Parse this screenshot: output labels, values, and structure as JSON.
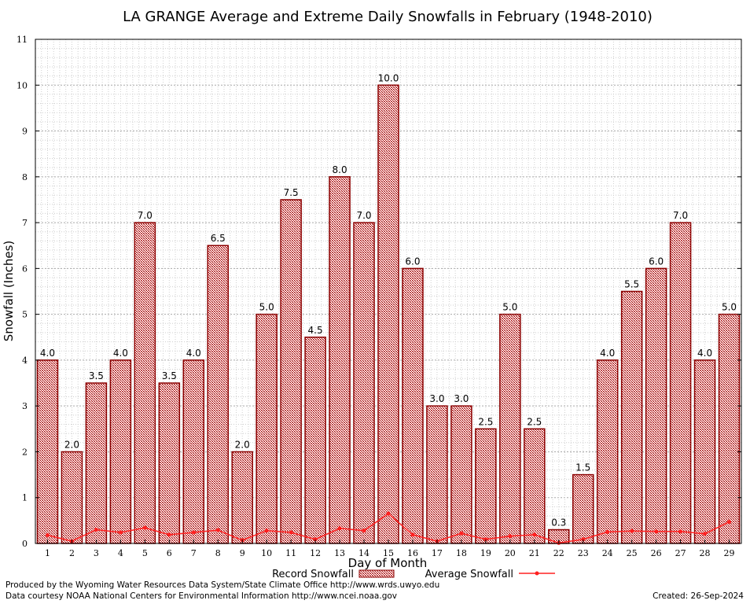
{
  "chart_data": {
    "type": "bar",
    "title": "LA GRANGE Average and Extreme Daily Snowfalls in February (1948-2010)",
    "xlabel": "Day of Month",
    "ylabel": "Snowfall (Inches)",
    "ylim": [
      0,
      11
    ],
    "yticks": [
      "0",
      "1",
      "2",
      "3",
      "4",
      "5",
      "6",
      "7",
      "8",
      "9",
      "10",
      "11"
    ],
    "categories": [
      "1",
      "2",
      "3",
      "4",
      "5",
      "6",
      "7",
      "8",
      "9",
      "10",
      "11",
      "12",
      "13",
      "14",
      "15",
      "16",
      "17",
      "18",
      "19",
      "20",
      "21",
      "22",
      "23",
      "24",
      "25",
      "26",
      "27",
      "28",
      "29"
    ],
    "grid": true,
    "series": [
      {
        "name": "Record Snowfall",
        "kind": "bar",
        "color": "#cc0000",
        "values": [
          4.0,
          2.0,
          3.5,
          4.0,
          7.0,
          3.5,
          4.0,
          6.5,
          2.0,
          5.0,
          7.5,
          4.5,
          8.0,
          7.0,
          10.0,
          6.0,
          3.0,
          3.0,
          2.5,
          5.0,
          2.5,
          0.3,
          1.5,
          4.0,
          5.5,
          6.0,
          7.0,
          4.0,
          5.0
        ],
        "labels": [
          "4.0",
          "2.0",
          "3.5",
          "4.0",
          "7.0",
          "3.5",
          "4.0",
          "6.5",
          "2.0",
          "5.0",
          "7.5",
          "4.5",
          "8.0",
          "7.0",
          "10.0",
          "6.0",
          "3.0",
          "3.0",
          "2.5",
          "5.0",
          "2.5",
          "0.3",
          "1.5",
          "4.0",
          "5.5",
          "6.0",
          "7.0",
          "4.0",
          "5.0"
        ]
      },
      {
        "name": "Average Snowfall",
        "kind": "line",
        "color": "#ff2020",
        "values": [
          0.18,
          0.05,
          0.3,
          0.24,
          0.34,
          0.19,
          0.24,
          0.29,
          0.07,
          0.28,
          0.24,
          0.09,
          0.33,
          0.28,
          0.65,
          0.19,
          0.05,
          0.22,
          0.09,
          0.16,
          0.19,
          0.01,
          0.09,
          0.25,
          0.27,
          0.26,
          0.26,
          0.21,
          0.47
        ]
      }
    ],
    "legend": {
      "position": "bottom"
    }
  },
  "footer": {
    "produced_by": "Produced by the Wyoming Water Resources Data System/State Climate Office http://www.wrds.uwyo.edu",
    "data_source": "Data courtesy NOAA National Centers for Environmental Information http://www.ncei.noaa.gov",
    "created": "Created:  26-Sep-2024"
  }
}
